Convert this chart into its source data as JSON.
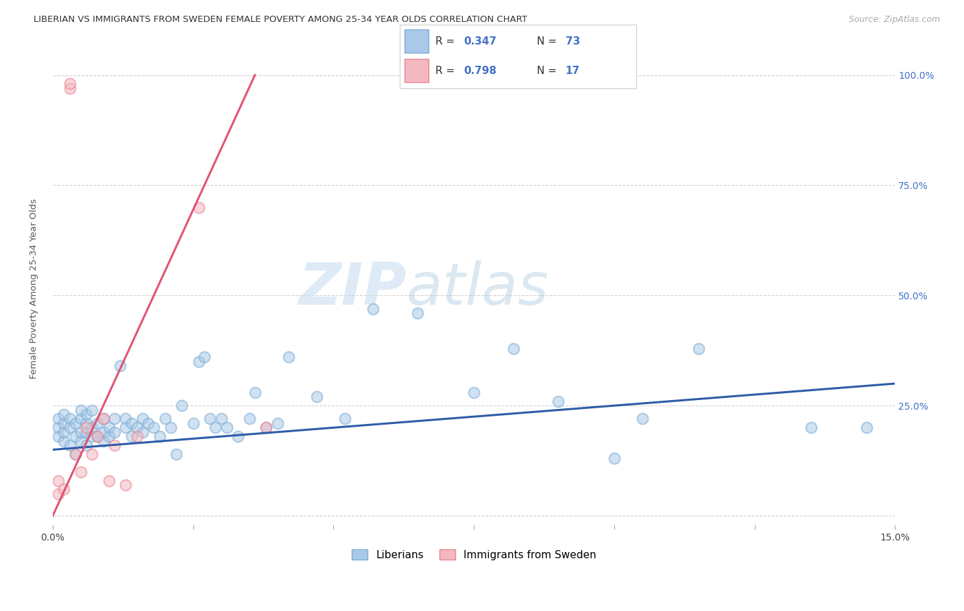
{
  "title": "LIBERIAN VS IMMIGRANTS FROM SWEDEN FEMALE POVERTY AMONG 25-34 YEAR OLDS CORRELATION CHART",
  "source": "Source: ZipAtlas.com",
  "ylabel": "Female Poverty Among 25-34 Year Olds",
  "yticks": [
    0.0,
    0.25,
    0.5,
    0.75,
    1.0
  ],
  "ytick_labels": [
    "",
    "25.0%",
    "50.0%",
    "75.0%",
    "100.0%"
  ],
  "xmin": 0.0,
  "xmax": 0.15,
  "ymin": -0.02,
  "ymax": 1.05,
  "legend_blue_r": "0.347",
  "legend_blue_n": "73",
  "legend_pink_r": "0.798",
  "legend_pink_n": "17",
  "legend_label_blue": "Liberians",
  "legend_label_pink": "Immigrants from Sweden",
  "blue_color": "#aac9e8",
  "pink_color": "#f4b8c1",
  "blue_edge_color": "#7aadd4",
  "pink_edge_color": "#e8848f",
  "blue_line_color": "#2f5ca8",
  "pink_line_color": "#e05575",
  "blue_r_color": "#4472c4",
  "pink_r_color": "#4472c4",
  "blue_dots_x": [
    0.001,
    0.001,
    0.001,
    0.002,
    0.002,
    0.002,
    0.002,
    0.003,
    0.003,
    0.003,
    0.004,
    0.004,
    0.004,
    0.005,
    0.005,
    0.005,
    0.005,
    0.006,
    0.006,
    0.006,
    0.006,
    0.007,
    0.007,
    0.007,
    0.008,
    0.008,
    0.009,
    0.009,
    0.009,
    0.01,
    0.01,
    0.011,
    0.011,
    0.012,
    0.013,
    0.013,
    0.014,
    0.014,
    0.015,
    0.016,
    0.016,
    0.017,
    0.018,
    0.019,
    0.02,
    0.021,
    0.022,
    0.023,
    0.025,
    0.026,
    0.027,
    0.028,
    0.029,
    0.03,
    0.031,
    0.033,
    0.035,
    0.036,
    0.038,
    0.04,
    0.042,
    0.047,
    0.052,
    0.057,
    0.065,
    0.075,
    0.082,
    0.09,
    0.1,
    0.105,
    0.115,
    0.135,
    0.145
  ],
  "blue_dots_y": [
    0.18,
    0.2,
    0.22,
    0.17,
    0.19,
    0.21,
    0.23,
    0.16,
    0.2,
    0.22,
    0.18,
    0.21,
    0.14,
    0.17,
    0.19,
    0.22,
    0.24,
    0.16,
    0.19,
    0.21,
    0.23,
    0.18,
    0.2,
    0.24,
    0.18,
    0.21,
    0.17,
    0.19,
    0.22,
    0.18,
    0.2,
    0.19,
    0.22,
    0.34,
    0.2,
    0.22,
    0.18,
    0.21,
    0.2,
    0.19,
    0.22,
    0.21,
    0.2,
    0.18,
    0.22,
    0.2,
    0.14,
    0.25,
    0.21,
    0.35,
    0.36,
    0.22,
    0.2,
    0.22,
    0.2,
    0.18,
    0.22,
    0.28,
    0.2,
    0.21,
    0.36,
    0.27,
    0.22,
    0.47,
    0.46,
    0.28,
    0.38,
    0.26,
    0.13,
    0.22,
    0.38,
    0.2,
    0.2
  ],
  "pink_dots_x": [
    0.001,
    0.001,
    0.002,
    0.003,
    0.003,
    0.004,
    0.005,
    0.006,
    0.007,
    0.008,
    0.009,
    0.01,
    0.011,
    0.013,
    0.015,
    0.026,
    0.038
  ],
  "pink_dots_y": [
    0.05,
    0.08,
    0.06,
    0.97,
    0.98,
    0.14,
    0.1,
    0.2,
    0.14,
    0.18,
    0.22,
    0.08,
    0.16,
    0.07,
    0.18,
    0.7,
    0.2
  ],
  "blue_trend_x": [
    0.0,
    0.15
  ],
  "blue_trend_y": [
    0.15,
    0.3
  ],
  "pink_trend_x": [
    0.0,
    0.036
  ],
  "pink_trend_y": [
    0.0,
    1.0
  ],
  "watermark_zip": "ZIP",
  "watermark_atlas": "atlas",
  "background_color": "#ffffff",
  "title_fontsize": 9.5,
  "source_fontsize": 9,
  "axis_label_fontsize": 9.5,
  "tick_fontsize": 10,
  "legend_fontsize": 11,
  "dot_size": 130,
  "dot_alpha": 0.55,
  "dot_linewidth": 1.5
}
